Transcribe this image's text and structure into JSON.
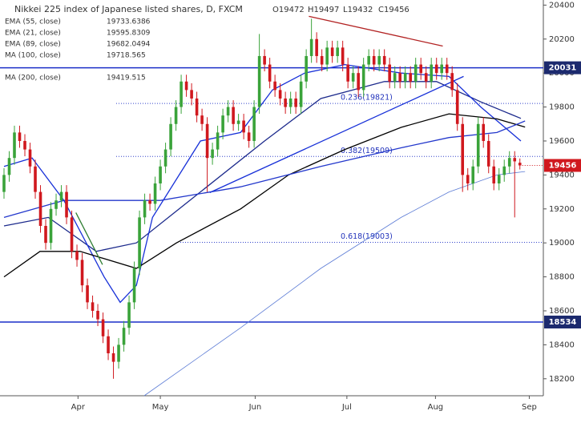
{
  "chart_data": {
    "type": "candlestick",
    "title": "Nikkei 225 index of Japanese listed shares, D, FXCM",
    "ohlc_header": [
      "O19472",
      "H19497",
      "L19432",
      "C19456"
    ],
    "open": [
      19300,
      19400,
      19500,
      19650,
      19600,
      19550,
      19450,
      19300,
      19100,
      19000,
      19200,
      19250,
      19300,
      19150,
      18950,
      18900,
      18750,
      18650,
      18600,
      18550,
      18450,
      18350,
      18300,
      18400,
      18500,
      18650,
      18850,
      19150,
      19250,
      19230,
      19350,
      19450,
      19550,
      19700,
      19800,
      19950,
      19900,
      19850,
      19750,
      19700,
      19500,
      19550,
      19650,
      19750,
      19800,
      19700,
      19720,
      19650,
      19600,
      19800,
      20100,
      20050,
      19950,
      19900,
      19850,
      19800,
      19850,
      19800,
      19950,
      20100,
      20200,
      20100,
      20050,
      20150,
      20100,
      20150,
      20050,
      19950,
      20000,
      19900,
      20050,
      20100,
      20050,
      20100,
      20050,
      19950,
      20000,
      19950,
      20000,
      19950,
      20050,
      20000,
      19950,
      20050,
      20000,
      20050,
      20000,
      19900,
      19700,
      19400,
      19350,
      19450,
      19700,
      19600,
      19450,
      19350,
      19400,
      19450,
      19500,
      19472
    ],
    "high": [
      19440,
      19540,
      19690,
      19690,
      19640,
      19590,
      19490,
      19340,
      19140,
      19240,
      19290,
      19340,
      19340,
      19190,
      18990,
      18940,
      18790,
      18690,
      18640,
      18590,
      18490,
      18390,
      18440,
      18540,
      18690,
      18890,
      19190,
      19290,
      19290,
      19390,
      19490,
      19590,
      19740,
      19840,
      19990,
      19990,
      19940,
      19890,
      19790,
      19740,
      19590,
      19690,
      19790,
      19840,
      19840,
      19760,
      19760,
      19690,
      19840,
      20230,
      20140,
      20090,
      19990,
      19940,
      19890,
      19890,
      19890,
      19990,
      20140,
      20320,
      20240,
      20140,
      20190,
      20190,
      20190,
      20190,
      20090,
      20040,
      20040,
      20090,
      20140,
      20140,
      20140,
      20140,
      20090,
      20040,
      20040,
      20040,
      20040,
      20090,
      20090,
      20040,
      20090,
      20090,
      20090,
      20090,
      20040,
      19940,
      19740,
      19440,
      19490,
      19740,
      19740,
      19640,
      19490,
      19440,
      19490,
      19540,
      19540,
      19497
    ],
    "low": [
      19260,
      19360,
      19460,
      19560,
      19510,
      19410,
      19260,
      19060,
      18960,
      18960,
      19160,
      19210,
      19110,
      18910,
      18860,
      18710,
      18610,
      18560,
      18510,
      18410,
      18310,
      18200,
      18260,
      18360,
      18460,
      18610,
      18810,
      19110,
      19190,
      19190,
      19310,
      19410,
      19510,
      19660,
      19760,
      19860,
      19810,
      19710,
      19660,
      19300,
      19460,
      19510,
      19610,
      19710,
      19660,
      19660,
      19610,
      19560,
      19560,
      19760,
      20010,
      19910,
      19860,
      19810,
      19760,
      19760,
      19760,
      19760,
      19910,
      20060,
      20060,
      20010,
      20010,
      20060,
      20060,
      20010,
      19910,
      19910,
      19860,
      19860,
      20010,
      20010,
      20010,
      20010,
      19910,
      19910,
      19910,
      19910,
      19910,
      19910,
      19960,
      19910,
      19910,
      19960,
      19960,
      19960,
      19860,
      19660,
      19300,
      19310,
      19310,
      19410,
      19560,
      19410,
      19310,
      19310,
      19360,
      19410,
      19150,
      19432
    ],
    "close": [
      19400,
      19500,
      19650,
      19600,
      19550,
      19450,
      19300,
      19100,
      19000,
      19200,
      19250,
      19300,
      19150,
      18950,
      18900,
      18750,
      18650,
      18600,
      18550,
      18450,
      18350,
      18300,
      18400,
      18500,
      18650,
      18850,
      19150,
      19250,
      19230,
      19350,
      19450,
      19550,
      19700,
      19800,
      19950,
      19900,
      19850,
      19750,
      19700,
      19500,
      19550,
      19650,
      19750,
      19800,
      19700,
      19720,
      19650,
      19600,
      19800,
      20100,
      20050,
      19950,
      19900,
      19850,
      19800,
      19850,
      19800,
      19950,
      20100,
      20200,
      20100,
      20050,
      20150,
      20100,
      20150,
      20050,
      19950,
      20000,
      19900,
      20050,
      20100,
      20050,
      20100,
      20050,
      19950,
      20000,
      19950,
      20000,
      19950,
      20050,
      20000,
      19950,
      20050,
      20000,
      20050,
      20000,
      19900,
      19700,
      19400,
      19350,
      19450,
      19700,
      19600,
      19450,
      19350,
      19400,
      19450,
      19500,
      19480,
      19456
    ],
    "up_color": "#3aa33a",
    "down_color": "#d0181e",
    "series": [
      {
        "name": "EMA (55, close)",
        "last": 19733.6386,
        "color": "#1c2a8c",
        "x": [
          0,
          8.5,
          17.7,
          25.4,
          37.7,
          50,
          60.8,
          73,
          83,
          91.5,
          99.2
        ],
        "values": [
          19100,
          19150,
          18950,
          19000,
          19300,
          19600,
          19850,
          19950,
          19950,
          19830,
          19733
        ]
      },
      {
        "name": "EMA (21, close)",
        "last": 19595.8309,
        "color": "#1730d8",
        "x": [
          0,
          5.4,
          11.5,
          19.2,
          22.3,
          25.4,
          28.5,
          37.7,
          45.4,
          51.5,
          57.7,
          65.4,
          76.2,
          85.4,
          91.5,
          99.2
        ],
        "values": [
          19450,
          19500,
          19250,
          18800,
          18650,
          18750,
          19150,
          19600,
          19650,
          19900,
          20000,
          20050,
          20000,
          19980,
          19800,
          19600
        ]
      },
      {
        "name": "EMA (89, close)",
        "last": 19682.0494,
        "color": "#000000",
        "x": [
          0,
          6.9,
          14.6,
          25.4,
          33.1,
          45.4,
          54.6,
          65.4,
          76.2,
          85.4,
          94.6,
          100
        ],
        "values": [
          18800,
          18950,
          18950,
          18850,
          19000,
          19200,
          19400,
          19550,
          19680,
          19760,
          19730,
          19682
        ]
      },
      {
        "name": "MA (100, close)",
        "last": 19718.565,
        "color": "#2338cc",
        "x": [
          0,
          11.5,
          30,
          45.4,
          60.8,
          76.2,
          85.4,
          94.6,
          100
        ],
        "values": [
          19150,
          19250,
          19250,
          19330,
          19450,
          19560,
          19620,
          19650,
          19718
        ]
      },
      {
        "name": "MA (200, close)",
        "last": 19419.515,
        "color": "#5b7bd5",
        "x": [
          26.9,
          45.4,
          60.8,
          76.2,
          85.4,
          94.6,
          100
        ],
        "values": [
          18100,
          18500,
          18850,
          19150,
          19300,
          19400,
          19420
        ]
      }
    ],
    "trendlines": [
      {
        "color": "#b22222",
        "x": [
          58.5,
          84.2
        ],
        "values": [
          20334,
          20159
        ]
      },
      {
        "color": "#1730d8",
        "x": [
          39.5,
          88.2
        ],
        "values": [
          19296,
          19980
        ]
      },
      {
        "color": "#2e7d32",
        "x": [
          13.8,
          18.9
        ],
        "values": [
          19178,
          18872
        ]
      }
    ],
    "fib_levels": [
      {
        "text": "0.236(19821)",
        "value": 19821
      },
      {
        "text": "0.382(19509)",
        "value": 19509
      },
      {
        "text": "0.618(19003)",
        "value": 19003
      }
    ],
    "levels": [
      20031,
      18534
    ],
    "level_color": "#1a2fc8",
    "xlim": [
      -0.77,
      103.5
    ],
    "xticks": [
      {
        "value": 14.2,
        "label": "Apr"
      },
      {
        "value": 30,
        "label": "May"
      },
      {
        "value": 48.2,
        "label": "Jun"
      },
      {
        "value": 65.8,
        "label": "Jul"
      },
      {
        "value": 82.8,
        "label": "Aug"
      },
      {
        "value": 100.8,
        "label": "Sep"
      }
    ],
    "ylim": [
      18100,
      20430
    ],
    "yticks": [
      18200,
      18400,
      18600,
      18800,
      19000,
      19200,
      19400,
      19600,
      19800,
      20000,
      20200,
      20400
    ]
  }
}
